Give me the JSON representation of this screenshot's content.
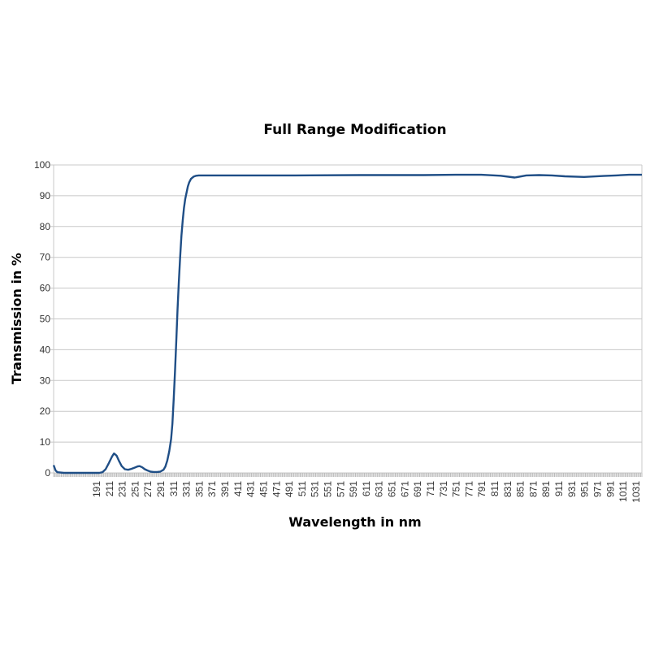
{
  "chart_data": {
    "type": "line",
    "title": "Full Range Modification",
    "xlabel": "Wavelength in nm",
    "ylabel": "Transmission in %",
    "xlim": [
      124,
      1040
    ],
    "ylim": [
      0,
      100
    ],
    "yticks": [
      0,
      10,
      20,
      30,
      40,
      50,
      60,
      70,
      80,
      90,
      100
    ],
    "xticks": [
      191,
      211,
      231,
      251,
      271,
      291,
      311,
      331,
      351,
      371,
      391,
      411,
      431,
      451,
      471,
      491,
      511,
      531,
      551,
      571,
      591,
      611,
      631,
      651,
      671,
      691,
      711,
      731,
      751,
      771,
      791,
      811,
      831,
      851,
      871,
      891,
      911,
      931,
      951,
      971,
      991,
      1011,
      1031
    ],
    "grid": "horizontal",
    "line_color": "#1f4e86",
    "series": [
      {
        "x": [
          124,
          127,
          130,
          140,
          160,
          180,
          195,
          200,
          205,
          210,
          215,
          218,
          222,
          226,
          230,
          235,
          240,
          245,
          250,
          255,
          258,
          262,
          266,
          270,
          275,
          280,
          285,
          290,
          295,
          298,
          301,
          304,
          307,
          309,
          311,
          313,
          315,
          317,
          319,
          321,
          323,
          325,
          327,
          329,
          331,
          333,
          335,
          338,
          342,
          346,
          350,
          400,
          500,
          600,
          700,
          750,
          790,
          820,
          842,
          860,
          880,
          900,
          920,
          950,
          980,
          1000,
          1020,
          1040
        ],
        "y": [
          2.5,
          0.8,
          0.2,
          0,
          0,
          0,
          0,
          0.2,
          1.2,
          3.2,
          5.3,
          6.3,
          5.6,
          3.8,
          2.2,
          1.2,
          1.0,
          1.3,
          1.7,
          2.1,
          2.2,
          1.8,
          1.2,
          0.8,
          0.4,
          0.3,
          0.3,
          0.4,
          1.0,
          2.0,
          4.0,
          7.0,
          11,
          16,
          24,
          33,
          43,
          53,
          62,
          70,
          77,
          82,
          86,
          89,
          91,
          93,
          94.3,
          95.5,
          96.2,
          96.5,
          96.6,
          96.6,
          96.6,
          96.7,
          96.7,
          96.8,
          96.8,
          96.5,
          95.9,
          96.6,
          96.7,
          96.6,
          96.3,
          96.1,
          96.4,
          96.6,
          96.8,
          96.8
        ]
      }
    ]
  }
}
